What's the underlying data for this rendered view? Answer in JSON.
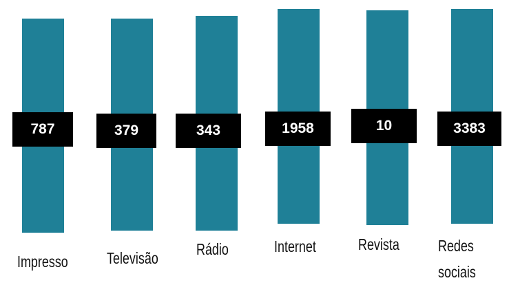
{
  "items": [
    {
      "label": "Impresso",
      "value": 787
    },
    {
      "label": "Televisão",
      "value": 379
    },
    {
      "label": "Rádio",
      "value": 343
    },
    {
      "label": "Internet",
      "value": 1958
    },
    {
      "label": "Revista",
      "value": 10
    },
    {
      "label": "Redes sociais",
      "value": 3383
    }
  ]
}
